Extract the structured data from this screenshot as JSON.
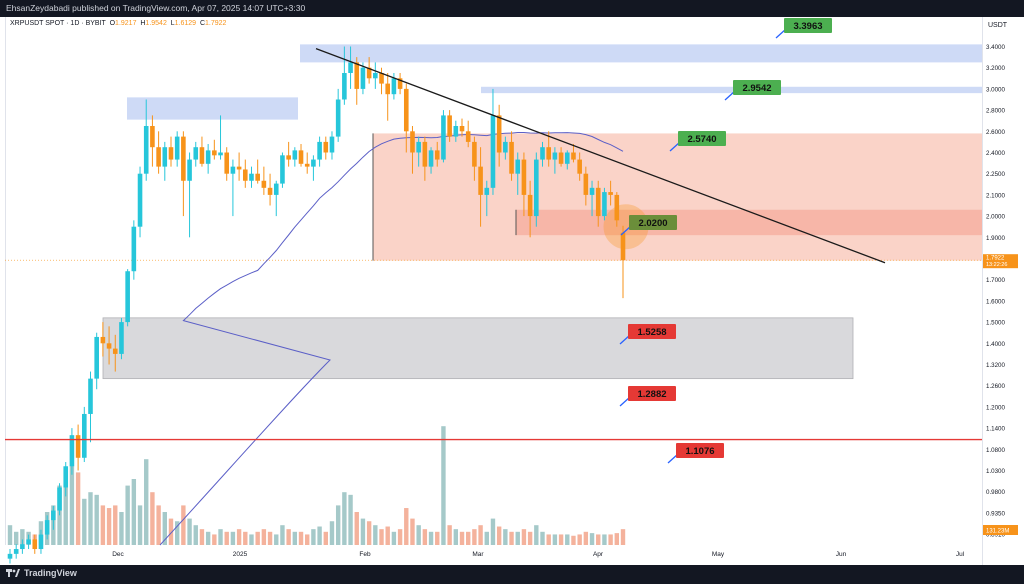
{
  "publish_bar": {
    "text": "EhsanZeydabadi published on TradingView.com, Apr 07, 2025 14:07 UTC+3:30"
  },
  "header": {
    "symbol": "XRPUSDT SPOT · 1D · BYBIT",
    "o_label": "O",
    "o_value": "1.9217",
    "h_label": "H",
    "h_value": "1.9542",
    "l_label": "L",
    "l_value": "1.6129",
    "c_label": "C",
    "c_value": "1.7922"
  },
  "currency": "USDT",
  "footer": {
    "brand": "TradingView"
  },
  "colors": {
    "up": "#26c6da",
    "down": "#f7931a",
    "vol_up": "#a5c9c9",
    "vol_down": "#f4b29c",
    "ma": "#5b5fc7",
    "trend": "#1a1a1a",
    "support_line": "#e53935",
    "zone_blue": "#c5d3f5",
    "zone_red": "#f8c4b6",
    "zone_red_dark": "#f5a493",
    "zone_gray": "#d9d9dc",
    "label_green": "#4caf50",
    "label_red": "#e53935",
    "label_olive": "#6b8e3a"
  },
  "chart_data": {
    "type": "candlestick",
    "x_tick_labels": [
      "Dec",
      "2025",
      "Feb",
      "Mar",
      "Apr",
      "May",
      "Jun",
      "Jul"
    ],
    "y_tick_labels": [
      "3.4000",
      "3.2000",
      "3.0000",
      "2.8000",
      "2.6000",
      "2.4000",
      "2.2500",
      "2.1000",
      "2.0000",
      "1.9000",
      "1.8000",
      "1.7000",
      "1.6000",
      "1.5000",
      "1.4000",
      "1.3200",
      "1.2600",
      "1.2000",
      "1.1400",
      "1.0800",
      "1.0300",
      "0.9800",
      "0.9350",
      "0.8910"
    ],
    "last_price": "1.7922",
    "last_time": "13:22:26",
    "volume_last": "131.23M",
    "levels": [
      {
        "label": "3.3963",
        "kind": "target"
      },
      {
        "label": "2.9542",
        "kind": "target"
      },
      {
        "label": "2.5740",
        "kind": "target"
      },
      {
        "label": "2.0200",
        "kind": "pivot"
      },
      {
        "label": "1.5258",
        "kind": "support"
      },
      {
        "label": "1.2882",
        "kind": "support"
      },
      {
        "label": "1.1076",
        "kind": "support"
      }
    ],
    "zones": [
      {
        "kind": "supply",
        "low": 3.25,
        "high": 3.42
      },
      {
        "kind": "supply",
        "low": 2.71,
        "high": 2.92
      },
      {
        "kind": "supply",
        "low": 2.96,
        "high": 3.02
      },
      {
        "kind": "range",
        "low": 1.79,
        "high": 2.58
      },
      {
        "kind": "range_inner",
        "low": 1.91,
        "high": 2.03
      },
      {
        "kind": "demand",
        "low": 1.28,
        "high": 1.52
      }
    ],
    "trendline": {
      "from_price": 3.38,
      "to_price": 1.78
    },
    "horizontal_line": 1.1076,
    "candles": [
      [
        0.84,
        0.86,
        0.83,
        0.85
      ],
      [
        0.85,
        0.87,
        0.84,
        0.86
      ],
      [
        0.86,
        0.88,
        0.85,
        0.87
      ],
      [
        0.87,
        0.89,
        0.86,
        0.88
      ],
      [
        0.88,
        0.89,
        0.85,
        0.86
      ],
      [
        0.86,
        0.9,
        0.85,
        0.89
      ],
      [
        0.89,
        0.93,
        0.88,
        0.92
      ],
      [
        0.92,
        0.95,
        0.9,
        0.94
      ],
      [
        0.94,
        1.0,
        0.93,
        0.99
      ],
      [
        0.99,
        1.05,
        0.97,
        1.04
      ],
      [
        1.04,
        1.14,
        1.02,
        1.12
      ],
      [
        1.12,
        1.15,
        1.03,
        1.06
      ],
      [
        1.06,
        1.2,
        1.05,
        1.18
      ],
      [
        1.18,
        1.3,
        1.1,
        1.28
      ],
      [
        1.28,
        1.45,
        1.25,
        1.43
      ],
      [
        1.43,
        1.5,
        1.35,
        1.4
      ],
      [
        1.4,
        1.48,
        1.32,
        1.38
      ],
      [
        1.38,
        1.44,
        1.3,
        1.36
      ],
      [
        1.36,
        1.52,
        1.34,
        1.5
      ],
      [
        1.5,
        1.75,
        1.48,
        1.74
      ],
      [
        1.74,
        1.98,
        1.7,
        1.95
      ],
      [
        1.95,
        2.3,
        1.9,
        2.25
      ],
      [
        2.25,
        2.9,
        2.2,
        2.65
      ],
      [
        2.65,
        2.75,
        2.3,
        2.45
      ],
      [
        2.45,
        2.6,
        2.25,
        2.3
      ],
      [
        2.3,
        2.5,
        2.2,
        2.45
      ],
      [
        2.45,
        2.55,
        2.3,
        2.35
      ],
      [
        2.35,
        2.6,
        2.3,
        2.55
      ],
      [
        2.55,
        2.6,
        2.0,
        2.2
      ],
      [
        2.2,
        2.4,
        1.9,
        2.35
      ],
      [
        2.35,
        2.5,
        2.3,
        2.45
      ],
      [
        2.45,
        2.55,
        2.3,
        2.32
      ],
      [
        2.32,
        2.48,
        2.25,
        2.42
      ],
      [
        2.42,
        2.52,
        2.35,
        2.38
      ],
      [
        2.38,
        2.75,
        2.35,
        2.4
      ],
      [
        2.4,
        2.45,
        2.2,
        2.25
      ],
      [
        2.25,
        2.35,
        2.0,
        2.3
      ],
      [
        2.3,
        2.4,
        2.2,
        2.28
      ],
      [
        2.28,
        2.35,
        2.15,
        2.2
      ],
      [
        2.2,
        2.3,
        2.15,
        2.25
      ],
      [
        2.25,
        2.35,
        2.18,
        2.2
      ],
      [
        2.2,
        2.3,
        2.1,
        2.15
      ],
      [
        2.15,
        2.25,
        2.05,
        2.1
      ],
      [
        2.1,
        2.2,
        2.0,
        2.18
      ],
      [
        2.18,
        2.4,
        2.15,
        2.38
      ],
      [
        2.38,
        2.5,
        2.3,
        2.35
      ],
      [
        2.35,
        2.45,
        2.3,
        2.42
      ],
      [
        2.42,
        2.48,
        2.3,
        2.32
      ],
      [
        2.32,
        2.4,
        2.25,
        2.3
      ],
      [
        2.3,
        2.38,
        2.2,
        2.35
      ],
      [
        2.35,
        2.55,
        2.3,
        2.5
      ],
      [
        2.5,
        2.55,
        2.35,
        2.4
      ],
      [
        2.4,
        2.6,
        2.35,
        2.55
      ],
      [
        2.55,
        3.0,
        2.5,
        2.9
      ],
      [
        2.9,
        3.4,
        2.85,
        3.15
      ],
      [
        3.15,
        3.4,
        3.0,
        3.25
      ],
      [
        3.25,
        3.3,
        2.85,
        3.0
      ],
      [
        3.0,
        3.25,
        2.95,
        3.2
      ],
      [
        3.2,
        3.3,
        3.05,
        3.1
      ],
      [
        3.1,
        3.25,
        3.0,
        3.15
      ],
      [
        3.15,
        3.2,
        2.95,
        3.05
      ],
      [
        3.05,
        3.15,
        2.7,
        2.95
      ],
      [
        2.95,
        3.15,
        2.9,
        3.1
      ],
      [
        3.1,
        3.15,
        2.95,
        3.0
      ],
      [
        3.0,
        3.05,
        2.4,
        2.6
      ],
      [
        2.6,
        2.65,
        2.25,
        2.4
      ],
      [
        2.4,
        2.55,
        2.3,
        2.5
      ],
      [
        2.5,
        2.55,
        2.2,
        2.3
      ],
      [
        2.3,
        2.45,
        2.25,
        2.42
      ],
      [
        2.42,
        2.5,
        2.3,
        2.35
      ],
      [
        2.35,
        2.8,
        2.33,
        2.75
      ],
      [
        2.75,
        2.8,
        2.5,
        2.55
      ],
      [
        2.55,
        2.7,
        2.5,
        2.65
      ],
      [
        2.65,
        2.72,
        2.55,
        2.6
      ],
      [
        2.6,
        2.7,
        2.45,
        2.5
      ],
      [
        2.5,
        2.55,
        2.2,
        2.3
      ],
      [
        2.3,
        2.45,
        1.95,
        2.1
      ],
      [
        2.1,
        2.2,
        2.0,
        2.15
      ],
      [
        2.15,
        3.0,
        2.1,
        2.75
      ],
      [
        2.75,
        2.85,
        2.3,
        2.4
      ],
      [
        2.4,
        2.55,
        2.35,
        2.5
      ],
      [
        2.5,
        2.6,
        2.2,
        2.25
      ],
      [
        2.25,
        2.4,
        2.1,
        2.35
      ],
      [
        2.35,
        2.4,
        2.0,
        2.1
      ],
      [
        2.1,
        2.2,
        1.9,
        2.0
      ],
      [
        2.0,
        2.4,
        1.95,
        2.35
      ],
      [
        2.35,
        2.5,
        2.3,
        2.45
      ],
      [
        2.45,
        2.6,
        2.3,
        2.35
      ],
      [
        2.35,
        2.45,
        2.25,
        2.4
      ],
      [
        2.4,
        2.45,
        2.3,
        2.32
      ],
      [
        2.32,
        2.42,
        2.28,
        2.4
      ],
      [
        2.4,
        2.48,
        2.33,
        2.35
      ],
      [
        2.35,
        2.4,
        2.2,
        2.25
      ],
      [
        2.25,
        2.3,
        2.05,
        2.1
      ],
      [
        2.1,
        2.2,
        2.0,
        2.15
      ],
      [
        2.15,
        2.2,
        1.95,
        2.0
      ],
      [
        2.0,
        2.15,
        1.98,
        2.12
      ],
      [
        2.12,
        2.2,
        2.05,
        2.1
      ],
      [
        2.1,
        2.12,
        1.95,
        1.98
      ],
      [
        1.9217,
        1.9542,
        1.6129,
        1.7922
      ]
    ],
    "volumes": [
      0.15,
      0.1,
      0.12,
      0.1,
      0.08,
      0.18,
      0.25,
      0.3,
      0.45,
      0.5,
      0.6,
      0.55,
      0.35,
      0.4,
      0.38,
      0.3,
      0.28,
      0.3,
      0.25,
      0.45,
      0.5,
      0.3,
      0.65,
      0.4,
      0.3,
      0.25,
      0.2,
      0.18,
      0.3,
      0.2,
      0.15,
      0.12,
      0.1,
      0.08,
      0.12,
      0.1,
      0.1,
      0.12,
      0.1,
      0.08,
      0.1,
      0.12,
      0.1,
      0.08,
      0.15,
      0.12,
      0.1,
      0.1,
      0.08,
      0.12,
      0.14,
      0.1,
      0.18,
      0.3,
      0.4,
      0.38,
      0.25,
      0.2,
      0.18,
      0.15,
      0.12,
      0.14,
      0.1,
      0.12,
      0.28,
      0.2,
      0.15,
      0.12,
      0.1,
      0.1,
      0.9,
      0.15,
      0.12,
      0.1,
      0.1,
      0.12,
      0.15,
      0.1,
      0.2,
      0.14,
      0.12,
      0.1,
      0.1,
      0.12,
      0.1,
      0.15,
      0.1,
      0.08,
      0.08,
      0.08,
      0.08,
      0.07,
      0.08,
      0.1,
      0.09,
      0.08,
      0.08,
      0.08,
      0.09,
      0.12
    ]
  }
}
